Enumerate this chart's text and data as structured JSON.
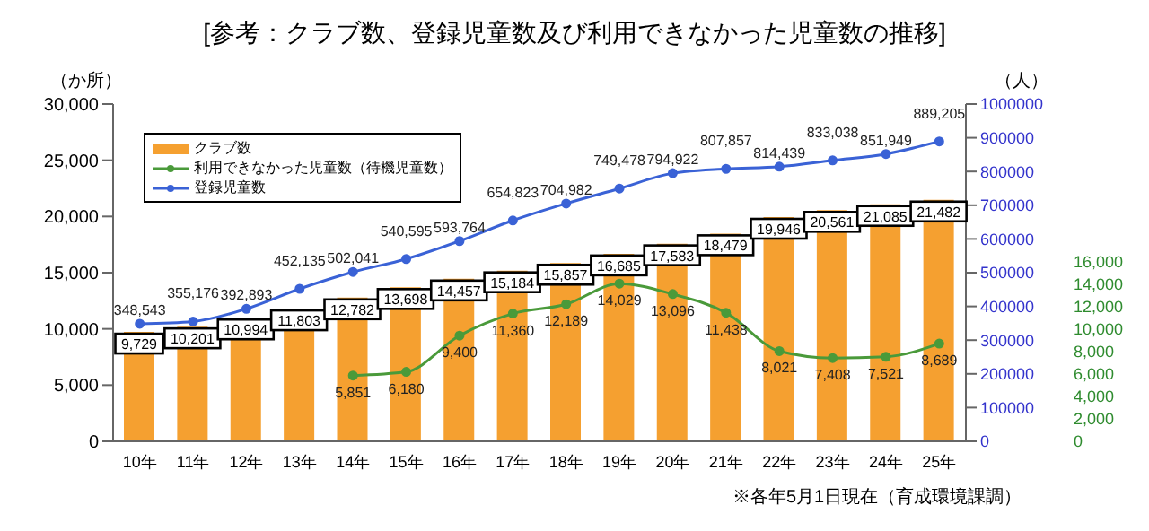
{
  "chart_data": {
    "type": "bar",
    "title": "[参考：クラブ数、登録児童数及び利用できなかった児童数の推移]",
    "ylabel": "（か所）",
    "y2label": "（人）",
    "categories": [
      "10年",
      "11年",
      "12年",
      "13年",
      "14年",
      "15年",
      "16年",
      "17年",
      "18年",
      "19年",
      "20年",
      "21年",
      "22年",
      "23年",
      "24年",
      "25年"
    ],
    "series": [
      {
        "name": "クラブ数",
        "color": "#f5a030",
        "values": [
          9729,
          10201,
          10994,
          11803,
          12782,
          13698,
          14457,
          15184,
          15857,
          16685,
          17583,
          18479,
          19946,
          20561,
          21085,
          21482
        ],
        "value_labels": [
          "9,729",
          "10,201",
          "10,994",
          "11,803",
          "12,782",
          "13,698",
          "14,457",
          "15,184",
          "15,857",
          "16,685",
          "17,583",
          "18,479",
          "19,946",
          "20,561",
          "21,085",
          "21,482"
        ]
      },
      {
        "name": "利用できなかった児童数（待機児童数）",
        "type": "line",
        "axis": "y3",
        "color": "#4a9a3a",
        "values": [
          null,
          null,
          null,
          null,
          5851,
          6180,
          9400,
          11360,
          12189,
          14029,
          13096,
          11438,
          8021,
          7408,
          7521,
          8689
        ],
        "value_labels": [
          null,
          null,
          null,
          null,
          "5,851",
          "6,180",
          "9,400",
          "11,360",
          "12,189",
          "14,029",
          "13,096",
          "11,438",
          "8,021",
          "7,408",
          "7,521",
          "8,689"
        ]
      },
      {
        "name": "登録児童数",
        "type": "line",
        "axis": "y2",
        "color": "#3a62d6",
        "values": [
          348543,
          355176,
          392893,
          452135,
          502041,
          540595,
          593764,
          654823,
          704982,
          749478,
          794922,
          807857,
          814439,
          833038,
          851949,
          889205
        ],
        "value_labels": [
          "348,543",
          "355,176",
          "392,893",
          "452,135",
          "502,041",
          "540,595",
          "593,764",
          "654,823",
          "704,982",
          "749,478",
          "794,922",
          "807,857",
          "814,439",
          "833,038",
          "851,949",
          "889,205"
        ]
      }
    ],
    "ylim": [
      0,
      30000
    ],
    "yticks": [
      0,
      {
        "value": 5000,
        "label": "5,000"
      },
      {
        "value": 10000,
        "label": "10,000"
      },
      {
        "value": 15000,
        "label": "15,000"
      },
      {
        "value": 20000,
        "label": "20,000"
      },
      {
        "value": 25000,
        "label": "25,000"
      },
      {
        "value": 30000,
        "label": "30,000"
      }
    ],
    "y2lim": [
      0,
      1000000
    ],
    "y2ticks": [
      0,
      100000,
      200000,
      300000,
      400000,
      500000,
      600000,
      700000,
      800000,
      900000,
      1000000
    ],
    "y3lim": [
      0,
      30000
    ],
    "y3ticks": [
      0,
      {
        "value": 2000,
        "label": "2,000"
      },
      {
        "value": 4000,
        "label": "4,000"
      },
      {
        "value": 6000,
        "label": "6,000"
      },
      {
        "value": 8000,
        "label": "8,000"
      },
      {
        "value": 10000,
        "label": "10,000"
      },
      {
        "value": 12000,
        "label": "12,000"
      },
      {
        "value": 14000,
        "label": "14,000"
      },
      {
        "value": 16000,
        "label": "16,000"
      }
    ],
    "grid": false,
    "legend": "top left",
    "marker": "circle",
    "annotations": [
      "※各年5月1日現在（育成環境課調）"
    ]
  }
}
